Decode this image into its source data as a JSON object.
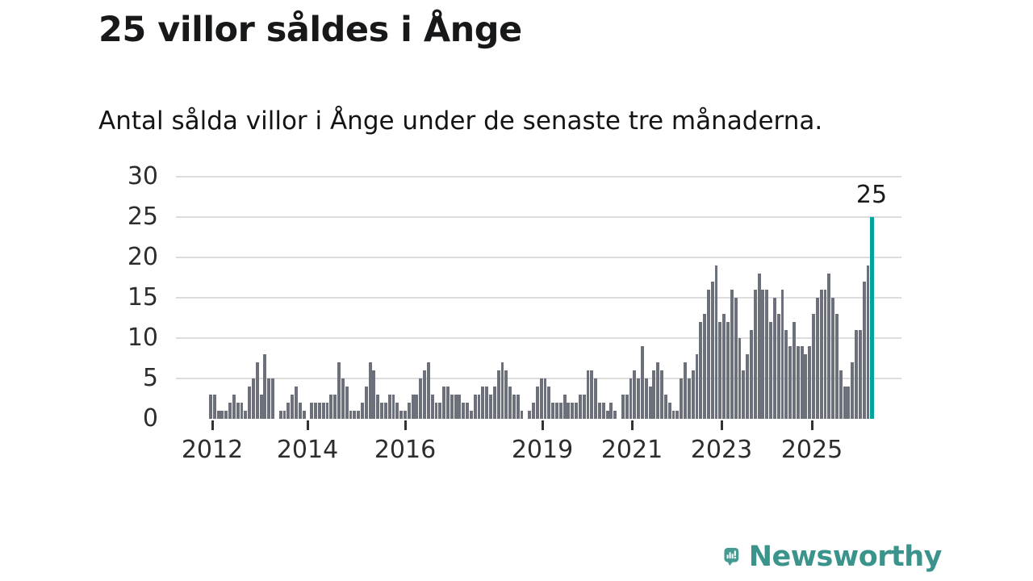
{
  "header": {
    "title": "25 villor såldes i Ånge",
    "subtitle": "Antal sålda villor i Ånge under de senaste tre månaderna."
  },
  "chart_data": {
    "type": "bar",
    "title": "25 villor såldes i Ånge",
    "subtitle": "Antal sålda villor i Ånge under de senaste tre månaderna.",
    "ylabel": "",
    "xlabel": "",
    "ylim": [
      0,
      30
    ],
    "grid": true,
    "legend": false,
    "y_ticks": [
      0,
      5,
      10,
      15,
      20,
      25,
      30
    ],
    "x_tick_labels": [
      "2012",
      "2014",
      "2016",
      "2019",
      "2021",
      "2023",
      "2025"
    ],
    "x_range_note": "monthly rolling 3-month totals from 2012 to 2025",
    "values": [
      3,
      3,
      1,
      1,
      1,
      2,
      3,
      2,
      2,
      1,
      4,
      5,
      7,
      3,
      8,
      5,
      5,
      0,
      1,
      1,
      2,
      3,
      4,
      2,
      1,
      0,
      2,
      2,
      2,
      2,
      2,
      3,
      3,
      7,
      5,
      4,
      1,
      1,
      1,
      2,
      4,
      7,
      6,
      3,
      2,
      2,
      3,
      3,
      2,
      1,
      1,
      2,
      3,
      3,
      5,
      6,
      7,
      3,
      2,
      2,
      4,
      4,
      3,
      3,
      3,
      2,
      2,
      1,
      3,
      3,
      4,
      4,
      3,
      4,
      6,
      7,
      6,
      4,
      3,
      3,
      1,
      0,
      1,
      2,
      4,
      5,
      5,
      4,
      2,
      2,
      2,
      3,
      2,
      2,
      2,
      3,
      3,
      6,
      6,
      5,
      2,
      2,
      1,
      2,
      1,
      0,
      3,
      3,
      5,
      6,
      5,
      9,
      5,
      4,
      6,
      7,
      6,
      3,
      2,
      1,
      1,
      5,
      7,
      5,
      6,
      8,
      12,
      13,
      16,
      17,
      19,
      12,
      13,
      12,
      16,
      15,
      10,
      6,
      8,
      11,
      16,
      18,
      16,
      16,
      12,
      15,
      13,
      16,
      11,
      9,
      12,
      9,
      9,
      8,
      9,
      13,
      15,
      16,
      16,
      18,
      15,
      13,
      6,
      4,
      4,
      7,
      11,
      11,
      17,
      19,
      25
    ],
    "highlight_index": 170,
    "highlight_value": 25,
    "highlight_label": "25",
    "bar_color": "#6c707a",
    "highlight_color": "#00a49e",
    "gridline_color": "#dcdcdc",
    "axis_color": "#323232"
  },
  "annotation": {
    "value_label": "25"
  },
  "footer": {
    "brand": "Newsworthy",
    "brand_color": "#3a948c",
    "logo_icon": "bar-chart-speech-bubble"
  }
}
